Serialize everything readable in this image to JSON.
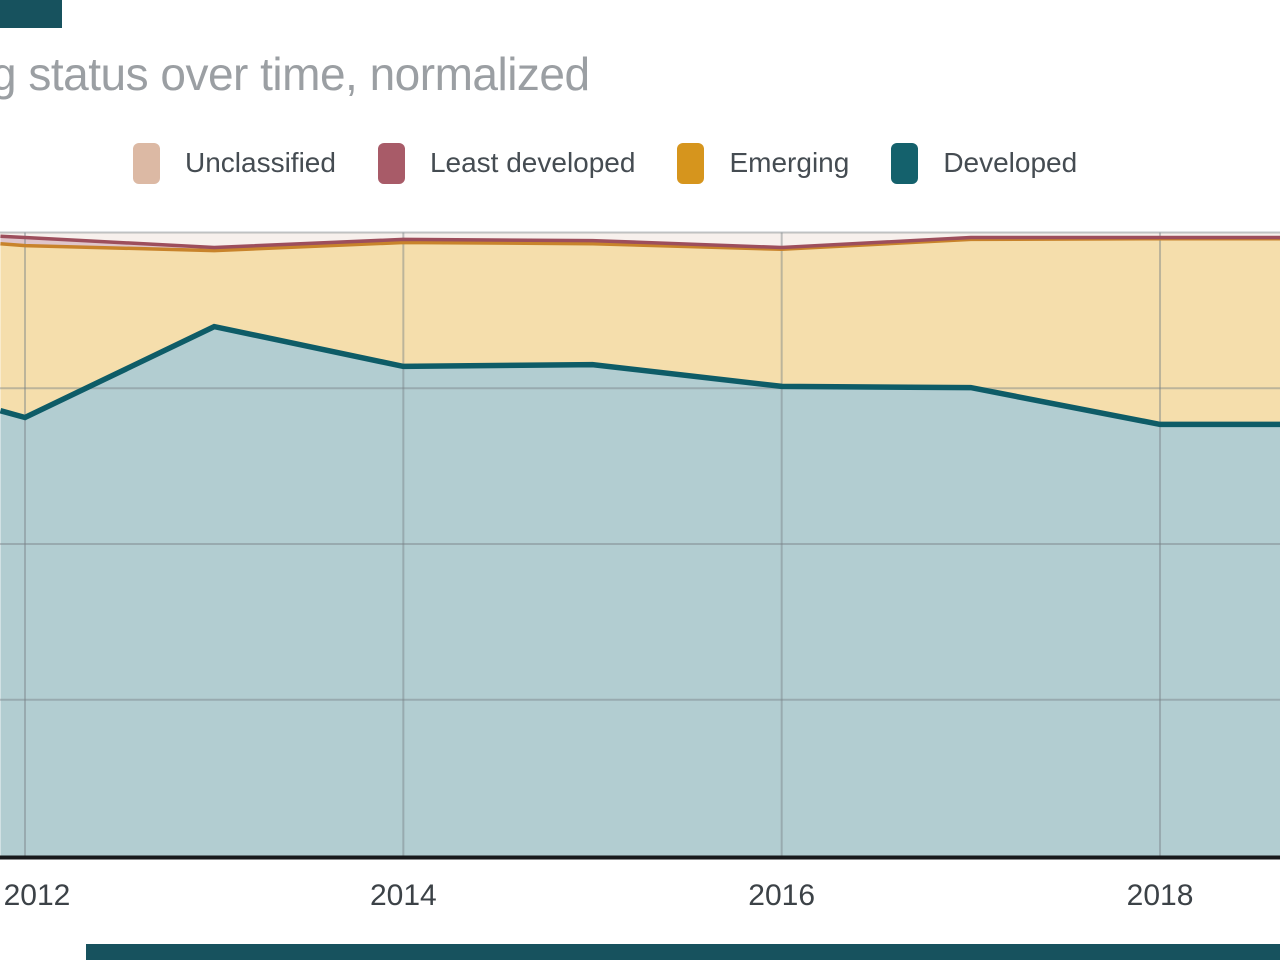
{
  "title": "g status over time, normalized",
  "legend": {
    "items": [
      {
        "label": "Unclassified",
        "color": "#dcb9a4"
      },
      {
        "label": "Least developed",
        "color": "#a85b68"
      },
      {
        "label": "Emerging",
        "color": "#d6951d"
      },
      {
        "label": "Developed",
        "color": "#14616c"
      }
    ]
  },
  "x_axis": {
    "tick_labels": [
      "2012",
      "2014",
      "2016",
      "2018"
    ]
  },
  "colors": {
    "background": "#ffffff",
    "axis_line": "#17191b",
    "gridline": "#788085",
    "tick_label": "#3c4247",
    "title_text": "#9b9fa3",
    "bottom_bar": "#17525e"
  },
  "chart_data": {
    "type": "area",
    "stacked": true,
    "normalized": true,
    "title": "g status over time, normalized",
    "xlabel": "",
    "ylabel": "",
    "ylim": [
      0,
      100
    ],
    "legend_position": "top",
    "grid": true,
    "x": [
      2011.87,
      2012,
      2013,
      2014,
      2015,
      2016,
      2017,
      2018,
      2018.64
    ],
    "x_ticks": [
      2012,
      2014,
      2016,
      2018
    ],
    "y_gridlines_pct": [
      25,
      50,
      75,
      100
    ],
    "series": [
      {
        "name": "Developed",
        "line_color": "#0e5c67",
        "fill_color": "#b2cdd1",
        "line_width": 5.5,
        "values": [
          71.4,
          70.3,
          84.9,
          78.5,
          78.8,
          75.3,
          75.1,
          69.2,
          69.2
        ]
      },
      {
        "name": "Emerging",
        "line_color": "#c8832b",
        "fill_color": "#f5deac",
        "line_width": 3.5,
        "values": [
          26.8,
          27.6,
          12.2,
          19.9,
          19.4,
          22.0,
          23.8,
          29.8,
          29.8
        ]
      },
      {
        "name": "Least developed",
        "line_color": "#9d4e5c",
        "fill_color": "#dfc5ca",
        "line_width": 3.5,
        "values": [
          1.2,
          1.3,
          0.5,
          0.5,
          0.5,
          0.3,
          0.3,
          0.2,
          0.2
        ]
      },
      {
        "name": "Unclassified",
        "line_color": null,
        "fill_color": "#f7f0ec",
        "line_width": 0,
        "values": [
          0.6,
          0.8,
          2.4,
          1.1,
          1.3,
          2.4,
          0.8,
          0.8,
          0.8
        ]
      }
    ]
  }
}
